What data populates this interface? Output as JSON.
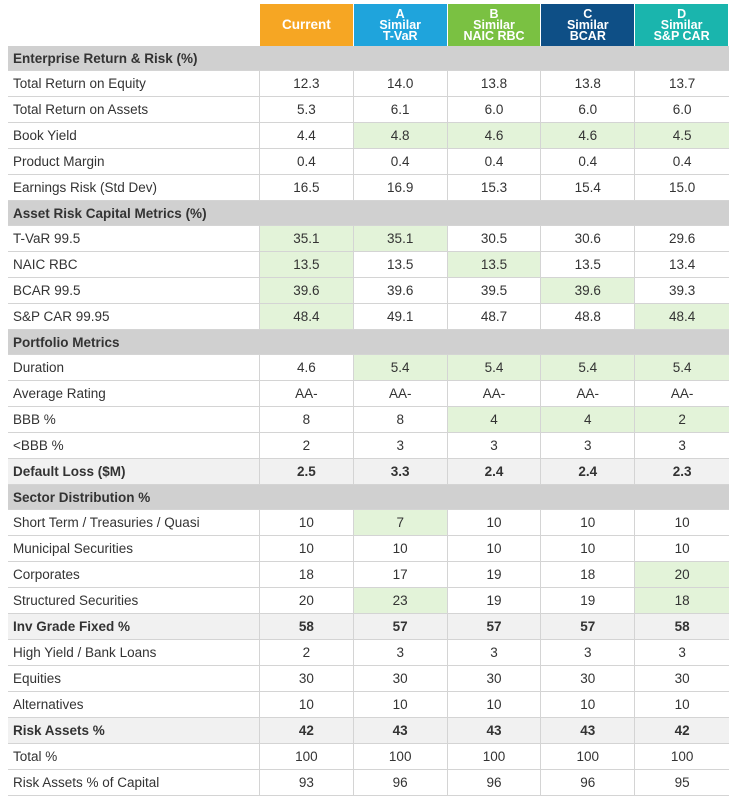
{
  "columns": [
    {
      "letter": "",
      "line1": "Current",
      "line2": "",
      "color": "#f6a623"
    },
    {
      "letter": "A",
      "line1": "Similar",
      "line2": "T-VaR",
      "color": "#1fa4dc"
    },
    {
      "letter": "B",
      "line1": "Similar",
      "line2": "NAIC RBC",
      "color": "#7ac142"
    },
    {
      "letter": "C",
      "line1": "Similar",
      "line2": "BCAR",
      "color": "#0e4f86"
    },
    {
      "letter": "D",
      "line1": "Similar",
      "line2": "S&P CAR",
      "color": "#1ab5ad"
    }
  ],
  "colors": {
    "highlight": "#e3f3d9",
    "section": "#d0d0d0",
    "bold_row": "#f1f1f1"
  },
  "sections": [
    {
      "title": "Enterprise Return & Risk (%)",
      "rows": [
        {
          "label": "Total Return on Equity",
          "values": [
            "12.3",
            "14.0",
            "13.8",
            "13.8",
            "13.7"
          ],
          "hl": [
            false,
            false,
            false,
            false,
            false
          ]
        },
        {
          "label": "Total Return on Assets",
          "values": [
            "5.3",
            "6.1",
            "6.0",
            "6.0",
            "6.0"
          ],
          "hl": [
            false,
            false,
            false,
            false,
            false
          ]
        },
        {
          "label": "Book Yield",
          "values": [
            "4.4",
            "4.8",
            "4.6",
            "4.6",
            "4.5"
          ],
          "hl": [
            false,
            true,
            true,
            true,
            true
          ]
        },
        {
          "label": "Product Margin",
          "values": [
            "0.4",
            "0.4",
            "0.4",
            "0.4",
            "0.4"
          ],
          "hl": [
            false,
            false,
            false,
            false,
            false
          ]
        },
        {
          "label": "Earnings Risk (Std Dev)",
          "values": [
            "16.5",
            "16.9",
            "15.3",
            "15.4",
            "15.0"
          ],
          "hl": [
            false,
            false,
            false,
            false,
            false
          ]
        }
      ]
    },
    {
      "title": "Asset Risk Capital Metrics (%)",
      "rows": [
        {
          "label": "T-VaR 99.5",
          "values": [
            "35.1",
            "35.1",
            "30.5",
            "30.6",
            "29.6"
          ],
          "hl": [
            true,
            true,
            false,
            false,
            false
          ]
        },
        {
          "label": "NAIC RBC",
          "values": [
            "13.5",
            "13.5",
            "13.5",
            "13.5",
            "13.4"
          ],
          "hl": [
            true,
            false,
            true,
            false,
            false
          ]
        },
        {
          "label": "BCAR 99.5",
          "values": [
            "39.6",
            "39.6",
            "39.5",
            "39.6",
            "39.3"
          ],
          "hl": [
            true,
            false,
            false,
            true,
            false
          ]
        },
        {
          "label": "S&P CAR 99.95",
          "values": [
            "48.4",
            "49.1",
            "48.7",
            "48.8",
            "48.4"
          ],
          "hl": [
            true,
            false,
            false,
            false,
            true
          ]
        }
      ]
    },
    {
      "title": "Portfolio Metrics",
      "rows": [
        {
          "label": "Duration",
          "values": [
            "4.6",
            "5.4",
            "5.4",
            "5.4",
            "5.4"
          ],
          "hl": [
            false,
            true,
            true,
            true,
            true
          ]
        },
        {
          "label": "Average Rating",
          "values": [
            "AA-",
            "AA-",
            "AA-",
            "AA-",
            "AA-"
          ],
          "hl": [
            false,
            false,
            false,
            false,
            false
          ]
        },
        {
          "label": "BBB %",
          "values": [
            "8",
            "8",
            "4",
            "4",
            "2"
          ],
          "hl": [
            false,
            false,
            true,
            true,
            true
          ]
        },
        {
          "label": "<BBB %",
          "values": [
            "2",
            "3",
            "3",
            "3",
            "3"
          ],
          "hl": [
            false,
            false,
            false,
            false,
            false
          ]
        },
        {
          "label": "Default Loss ($M)",
          "values": [
            "2.5",
            "3.3",
            "2.4",
            "2.4",
            "2.3"
          ],
          "hl": [
            false,
            false,
            false,
            false,
            false
          ],
          "bold": true
        }
      ]
    },
    {
      "title": "Sector Distribution %",
      "rows": [
        {
          "label": "Short Term / Treasuries / Quasi",
          "values": [
            "10",
            "7",
            "10",
            "10",
            "10"
          ],
          "hl": [
            false,
            true,
            false,
            false,
            false
          ]
        },
        {
          "label": "Municipal Securities",
          "values": [
            "10",
            "10",
            "10",
            "10",
            "10"
          ],
          "hl": [
            false,
            false,
            false,
            false,
            false
          ]
        },
        {
          "label": "Corporates",
          "values": [
            "18",
            "17",
            "19",
            "18",
            "20"
          ],
          "hl": [
            false,
            false,
            false,
            false,
            true
          ]
        },
        {
          "label": "Structured Securities",
          "values": [
            "20",
            "23",
            "19",
            "19",
            "18"
          ],
          "hl": [
            false,
            true,
            false,
            false,
            true
          ]
        },
        {
          "label": "Inv Grade Fixed %",
          "values": [
            "58",
            "57",
            "57",
            "57",
            "58"
          ],
          "hl": [
            false,
            false,
            false,
            false,
            false
          ],
          "bold": true
        },
        {
          "label": "High Yield / Bank Loans",
          "values": [
            "2",
            "3",
            "3",
            "3",
            "3"
          ],
          "hl": [
            false,
            false,
            false,
            false,
            false
          ]
        },
        {
          "label": "Equities",
          "values": [
            "30",
            "30",
            "30",
            "30",
            "30"
          ],
          "hl": [
            false,
            false,
            false,
            false,
            false
          ]
        },
        {
          "label": "Alternatives",
          "values": [
            "10",
            "10",
            "10",
            "10",
            "10"
          ],
          "hl": [
            false,
            false,
            false,
            false,
            false
          ]
        },
        {
          "label": "Risk Assets %",
          "values": [
            "42",
            "43",
            "43",
            "43",
            "42"
          ],
          "hl": [
            false,
            false,
            false,
            false,
            false
          ],
          "bold": true
        },
        {
          "label": "Total %",
          "values": [
            "100",
            "100",
            "100",
            "100",
            "100"
          ],
          "hl": [
            false,
            false,
            false,
            false,
            false
          ]
        },
        {
          "label": "Risk Assets % of Capital",
          "values": [
            "93",
            "96",
            "96",
            "96",
            "95"
          ],
          "hl": [
            false,
            false,
            false,
            false,
            false
          ]
        }
      ]
    }
  ]
}
